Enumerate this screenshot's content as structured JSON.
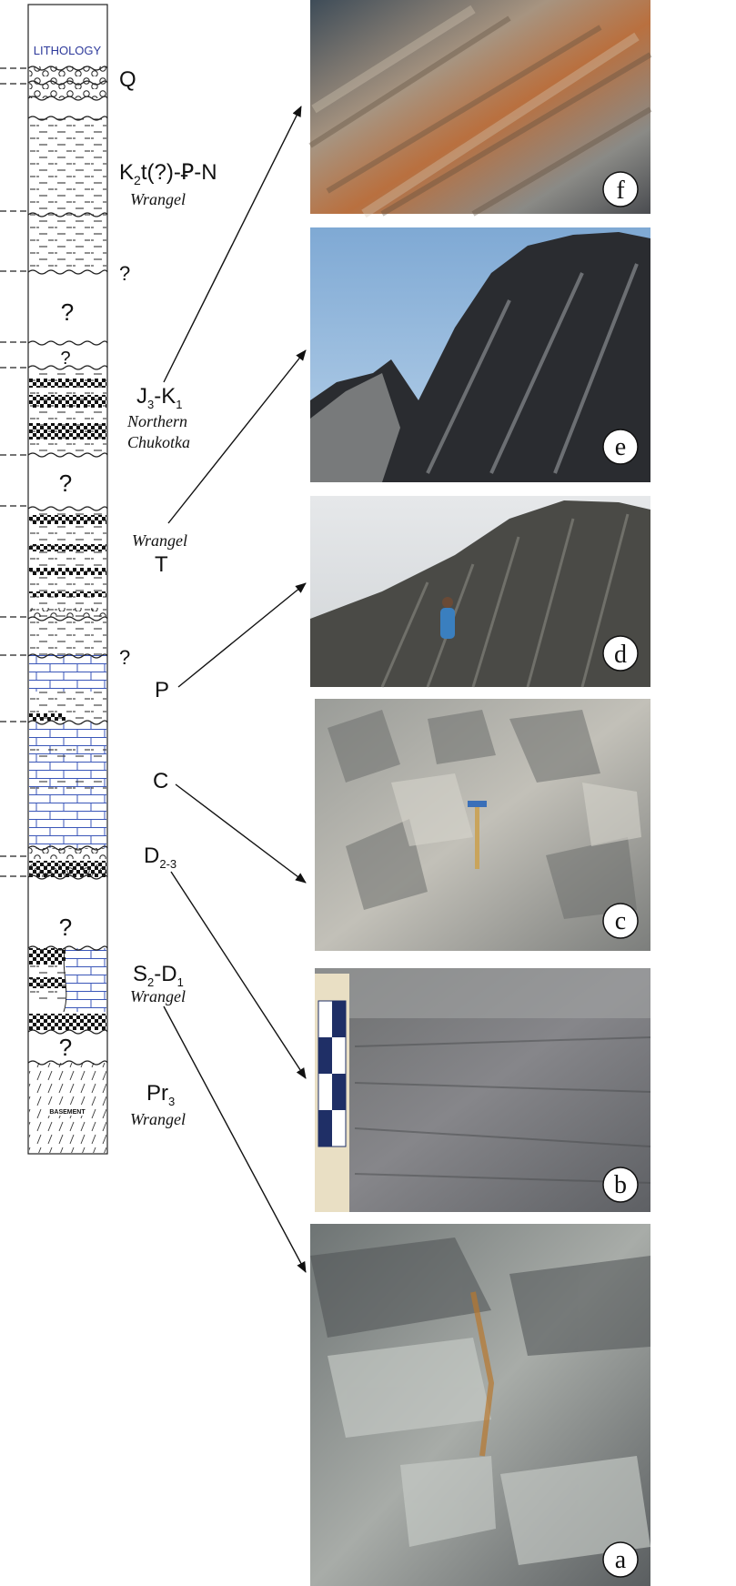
{
  "column": {
    "header": "LITHOLOGY",
    "basement_label": "BASEMENT",
    "header_color": "#2e3a9b",
    "limestone_color": "#3a56b8"
  },
  "units": {
    "q": "Q",
    "k2": {
      "main": "K",
      "sub": "2",
      "rest": "t(?)-Ꝑ-N",
      "locality": "Wrangel"
    },
    "j3k1": {
      "a": "J",
      "a_sub": "3",
      "dash": "-K",
      "b_sub": "1",
      "locality_line1": "Northern",
      "locality_line2": "Chukotka"
    },
    "t": {
      "locality": "Wrangel",
      "main": "T"
    },
    "p": "P",
    "c": "C",
    "d23": {
      "main": "D",
      "sub": "2-3"
    },
    "s2d1": {
      "a": "S",
      "a_sub": "2",
      "dash": "-D",
      "b_sub": "1",
      "locality": "Wrangel"
    },
    "pr3": {
      "main": "Pr",
      "sub": "3",
      "locality": "Wrangel"
    }
  },
  "question_marks": [
    "?",
    "?",
    "?",
    "?",
    "?",
    "?",
    "?",
    "?"
  ],
  "photos": [
    {
      "id": "f",
      "label": "f"
    },
    {
      "id": "e",
      "label": "e"
    },
    {
      "id": "d",
      "label": "d"
    },
    {
      "id": "c",
      "label": "c"
    },
    {
      "id": "b",
      "label": "b"
    },
    {
      "id": "a",
      "label": "a"
    }
  ]
}
